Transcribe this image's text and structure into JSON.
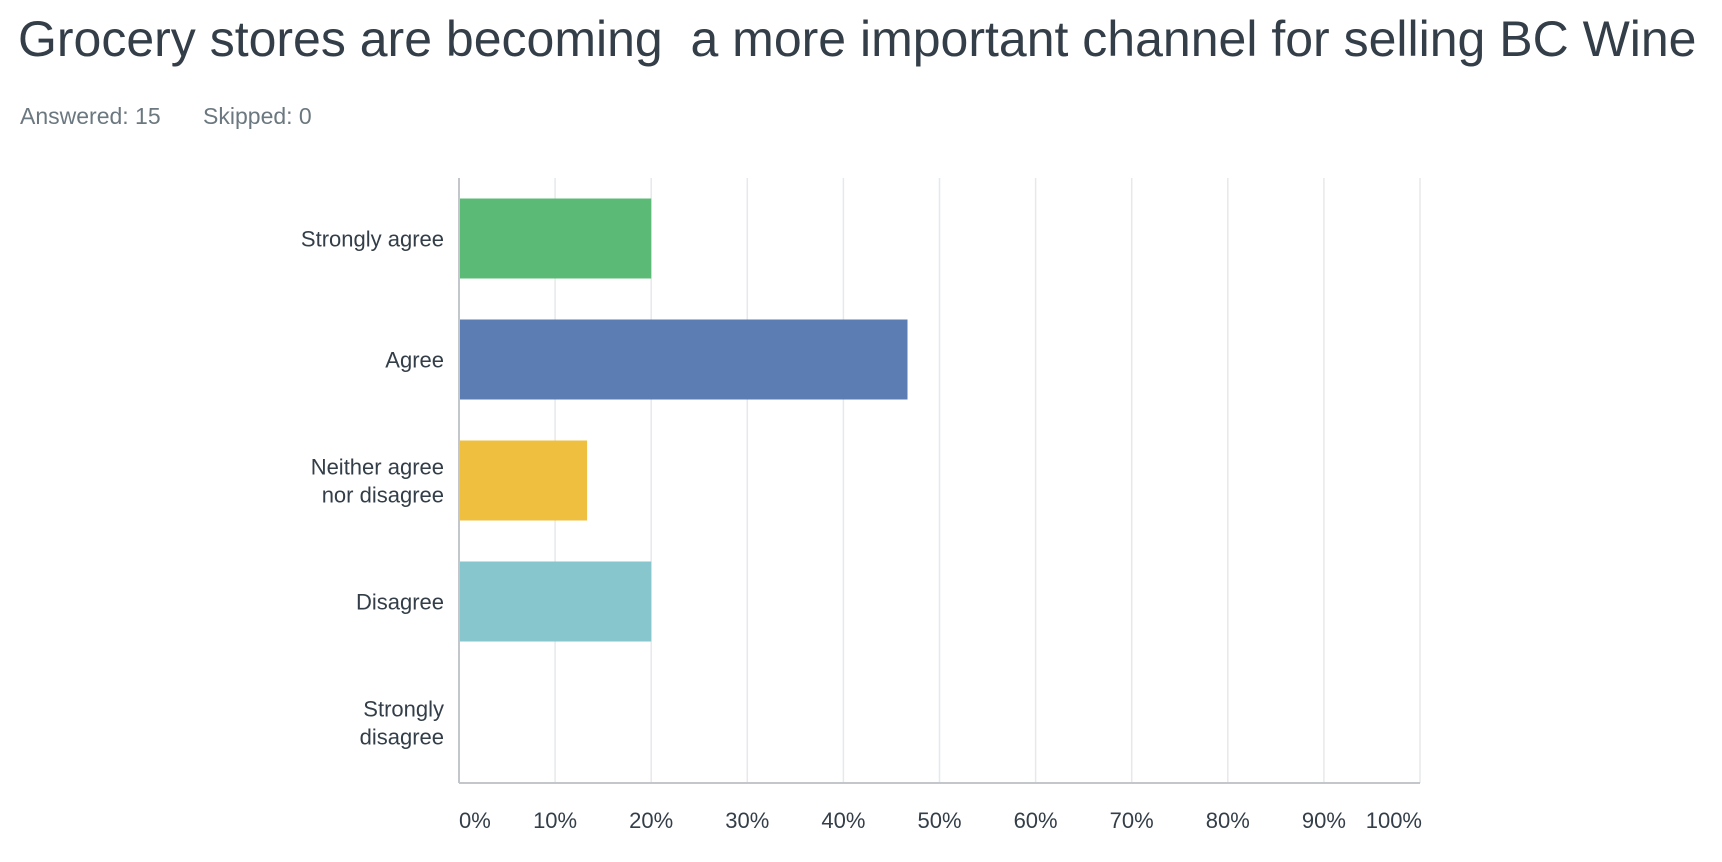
{
  "title": "Grocery stores are becoming  a more important channel for selling BC Wine",
  "stats": {
    "answered": "Answered: 15",
    "skipped": "Skipped: 0"
  },
  "chart_data": {
    "type": "bar",
    "orientation": "horizontal",
    "categories": [
      [
        "Strongly agree"
      ],
      [
        "Agree"
      ],
      [
        "Neither agree",
        "nor disagree"
      ],
      [
        "Disagree"
      ],
      [
        "Strongly",
        "disagree"
      ]
    ],
    "values": [
      20,
      46.67,
      13.33,
      20,
      0
    ],
    "colors": [
      "#5bbb76",
      "#5b7db4",
      "#efbf3f",
      "#86c6cc",
      "#f08a6c"
    ],
    "xlim": [
      0,
      100
    ],
    "xticks": [
      "0%",
      "10%",
      "20%",
      "30%",
      "40%",
      "50%",
      "60%",
      "70%",
      "80%",
      "90%",
      "100%"
    ],
    "grid": true
  }
}
